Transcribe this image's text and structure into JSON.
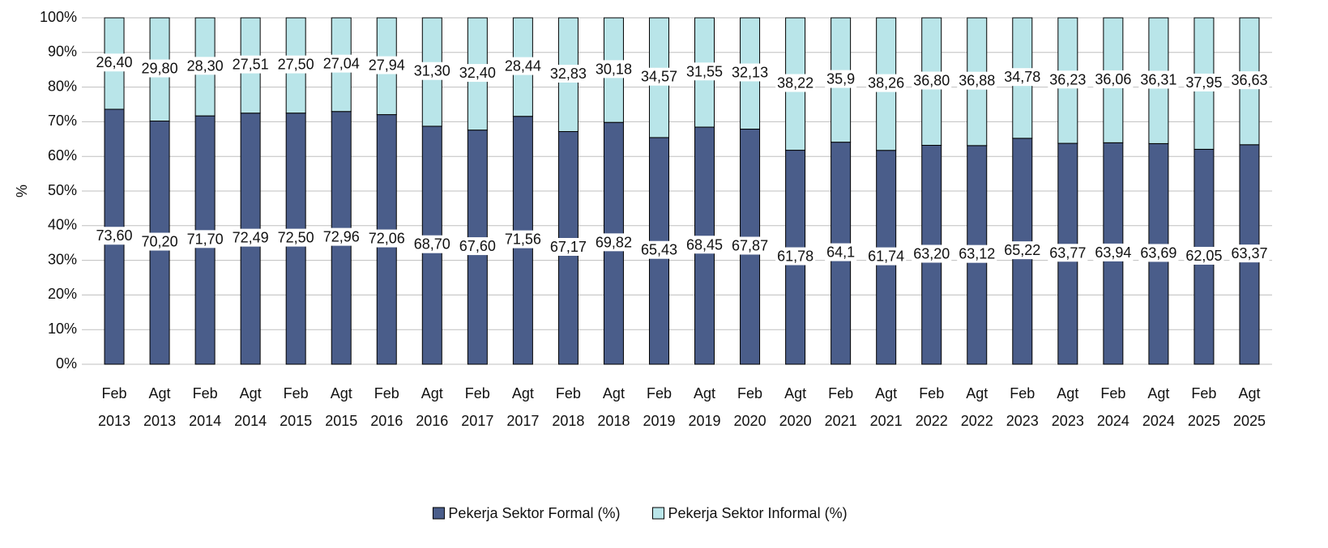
{
  "chart_data": {
    "type": "stacked_bar",
    "ylabel": "%",
    "categories": [
      "Feb 2013",
      "Agt 2013",
      "Feb 2014",
      "Agt 2014",
      "Feb 2015",
      "Agt 2015",
      "Feb 2016",
      "Agt 2016",
      "Feb 2017",
      "Agt 2017",
      "Feb 2018",
      "Agt 2018",
      "Feb 2019",
      "Agt 2019",
      "Feb 2020",
      "Agt 2020",
      "Feb 2021",
      "Agt 2021",
      "Feb 2022",
      "Agt 2022",
      "Feb 2023",
      "Agt 2023",
      "Feb 2024",
      "Agt 2024",
      "Feb 2025",
      "Agt 2025"
    ],
    "series": [
      {
        "name": "Pekerja Sektor Formal (%)",
        "color": "#4a5d8a",
        "values": [
          73.6,
          70.2,
          71.7,
          72.49,
          72.5,
          72.96,
          72.06,
          68.7,
          67.6,
          71.56,
          67.17,
          69.82,
          65.43,
          68.45,
          67.87,
          61.78,
          64.1,
          61.74,
          63.2,
          63.12,
          65.22,
          63.77,
          63.94,
          63.69,
          62.05,
          63.37
        ],
        "value_labels": [
          "73,60",
          "70,20",
          "71,70",
          "72,49",
          "72,50",
          "72,96",
          "72,06",
          "68,70",
          "67,60",
          "71,56",
          "67,17",
          "69,82",
          "65,43",
          "68,45",
          "67,87",
          "61,78",
          "64,1",
          "61,74",
          "63,20",
          "63,12",
          "65,22",
          "63,77",
          "63,94",
          "63,69",
          "62,05",
          "63,37"
        ]
      },
      {
        "name": "Pekerja Sektor Informal (%)",
        "color": "#b9e5e9",
        "values": [
          26.4,
          29.8,
          28.3,
          27.51,
          27.5,
          27.04,
          27.94,
          31.3,
          32.4,
          28.44,
          32.83,
          30.18,
          34.57,
          31.55,
          32.13,
          38.22,
          35.9,
          38.26,
          36.8,
          36.88,
          34.78,
          36.23,
          36.06,
          36.31,
          37.95,
          36.63
        ],
        "value_labels": [
          "26,40",
          "29,80",
          "28,30",
          "27,51",
          "27,50",
          "27,04",
          "27,94",
          "31,30",
          "32,40",
          "28,44",
          "32,83",
          "30,18",
          "34,57",
          "31,55",
          "32,13",
          "38,22",
          "35,9",
          "38,26",
          "36,80",
          "36,88",
          "34,78",
          "36,23",
          "36,06",
          "36,31",
          "37,95",
          "36,63"
        ]
      }
    ],
    "ylim": [
      0,
      100
    ],
    "yticks": [
      {
        "value": 0,
        "label": "0%"
      },
      {
        "value": 10,
        "label": "10%"
      },
      {
        "value": 20,
        "label": "20%"
      },
      {
        "value": 30,
        "label": "30%"
      },
      {
        "value": 40,
        "label": "40%"
      },
      {
        "value": 50,
        "label": "50%"
      },
      {
        "value": 60,
        "label": "60%"
      },
      {
        "value": 70,
        "label": "70%"
      },
      {
        "value": 80,
        "label": "80%"
      },
      {
        "value": 90,
        "label": "90%"
      },
      {
        "value": 100,
        "label": "100%"
      }
    ],
    "grid": true,
    "legend": "bottom"
  }
}
